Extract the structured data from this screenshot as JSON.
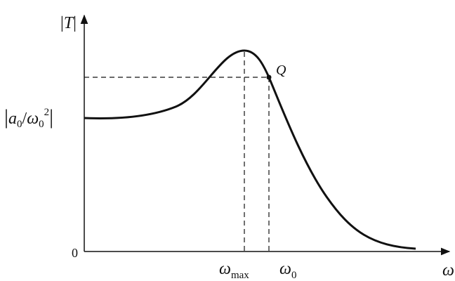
{
  "diagram": {
    "y_axis_label": {
      "bar_left": "|",
      "symbol": "T",
      "bar_right": "|"
    },
    "y_level_label": {
      "bar_left": "|",
      "a": "a",
      "a_sub": "0",
      "slash": "/",
      "omega": "ω",
      "omega_sub": "0",
      "power": "2",
      "bar_right": "|"
    },
    "origin_label": "0",
    "point_label": "Q",
    "peak_label": {
      "symbol": "ω",
      "subscript": "max"
    },
    "resonance_label": {
      "symbol": "ω",
      "subscript": "0"
    },
    "x_axis_label": "ω"
  }
}
